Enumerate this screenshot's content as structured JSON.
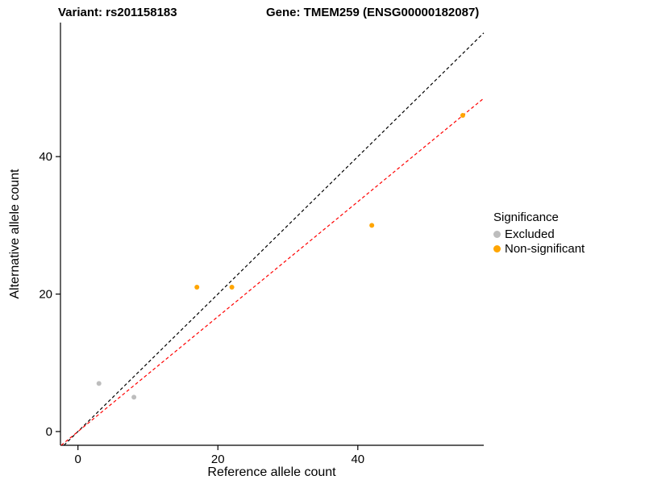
{
  "chart_data": {
    "type": "scatter",
    "title_left": "Variant: rs201158183",
    "title_right": "Gene: TMEM259 (ENSG00000182087)",
    "xlabel": "Reference allele count",
    "ylabel": "Alternative allele count",
    "xlim": [
      -2.5,
      58
    ],
    "ylim": [
      -2,
      59.5
    ],
    "xticks": [
      0,
      20,
      40
    ],
    "yticks": [
      0,
      20,
      40
    ],
    "grid": false,
    "legend_position": "right",
    "series": [
      {
        "name": "Excluded",
        "color": "#bdbdbd",
        "points": [
          [
            3,
            7
          ],
          [
            8,
            5
          ]
        ]
      },
      {
        "name": "Non-significant",
        "color": "#FFA500",
        "points": [
          [
            17,
            21
          ],
          [
            22,
            21
          ],
          [
            42,
            30
          ],
          [
            55,
            46
          ]
        ]
      }
    ],
    "lines": [
      {
        "name": "identity-line",
        "slope": 1,
        "intercept": 0,
        "color": "#000000",
        "dash": "4,3"
      },
      {
        "name": "regression-line",
        "slope": 0.836,
        "intercept": 0,
        "color": "#FF0000",
        "dash": "4,3"
      }
    ],
    "legend": {
      "title": "Significance",
      "items": [
        {
          "label": "Excluded",
          "color": "#bdbdbd"
        },
        {
          "label": "Non-significant",
          "color": "#FFA500"
        }
      ]
    }
  }
}
